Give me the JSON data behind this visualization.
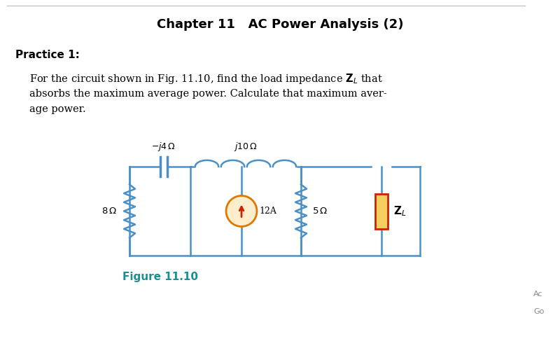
{
  "title": "Chapter 11   AC Power Analysis (2)",
  "practice_label": "Practice 1:",
  "figure_label": "Figure 11.10",
  "bg_color": "#ffffff",
  "text_color": "#000000",
  "figure_label_color": "#1a9090",
  "circuit_color": "#4a90c8",
  "current_source_fill": "#ffeecc",
  "current_source_edge": "#e07800",
  "zl_fill": "#f5d060",
  "zl_border": "#cc2200",
  "arrow_color": "#cc2200",
  "separator_color": "#bbbbbb",
  "sidebar_color": "#888888"
}
